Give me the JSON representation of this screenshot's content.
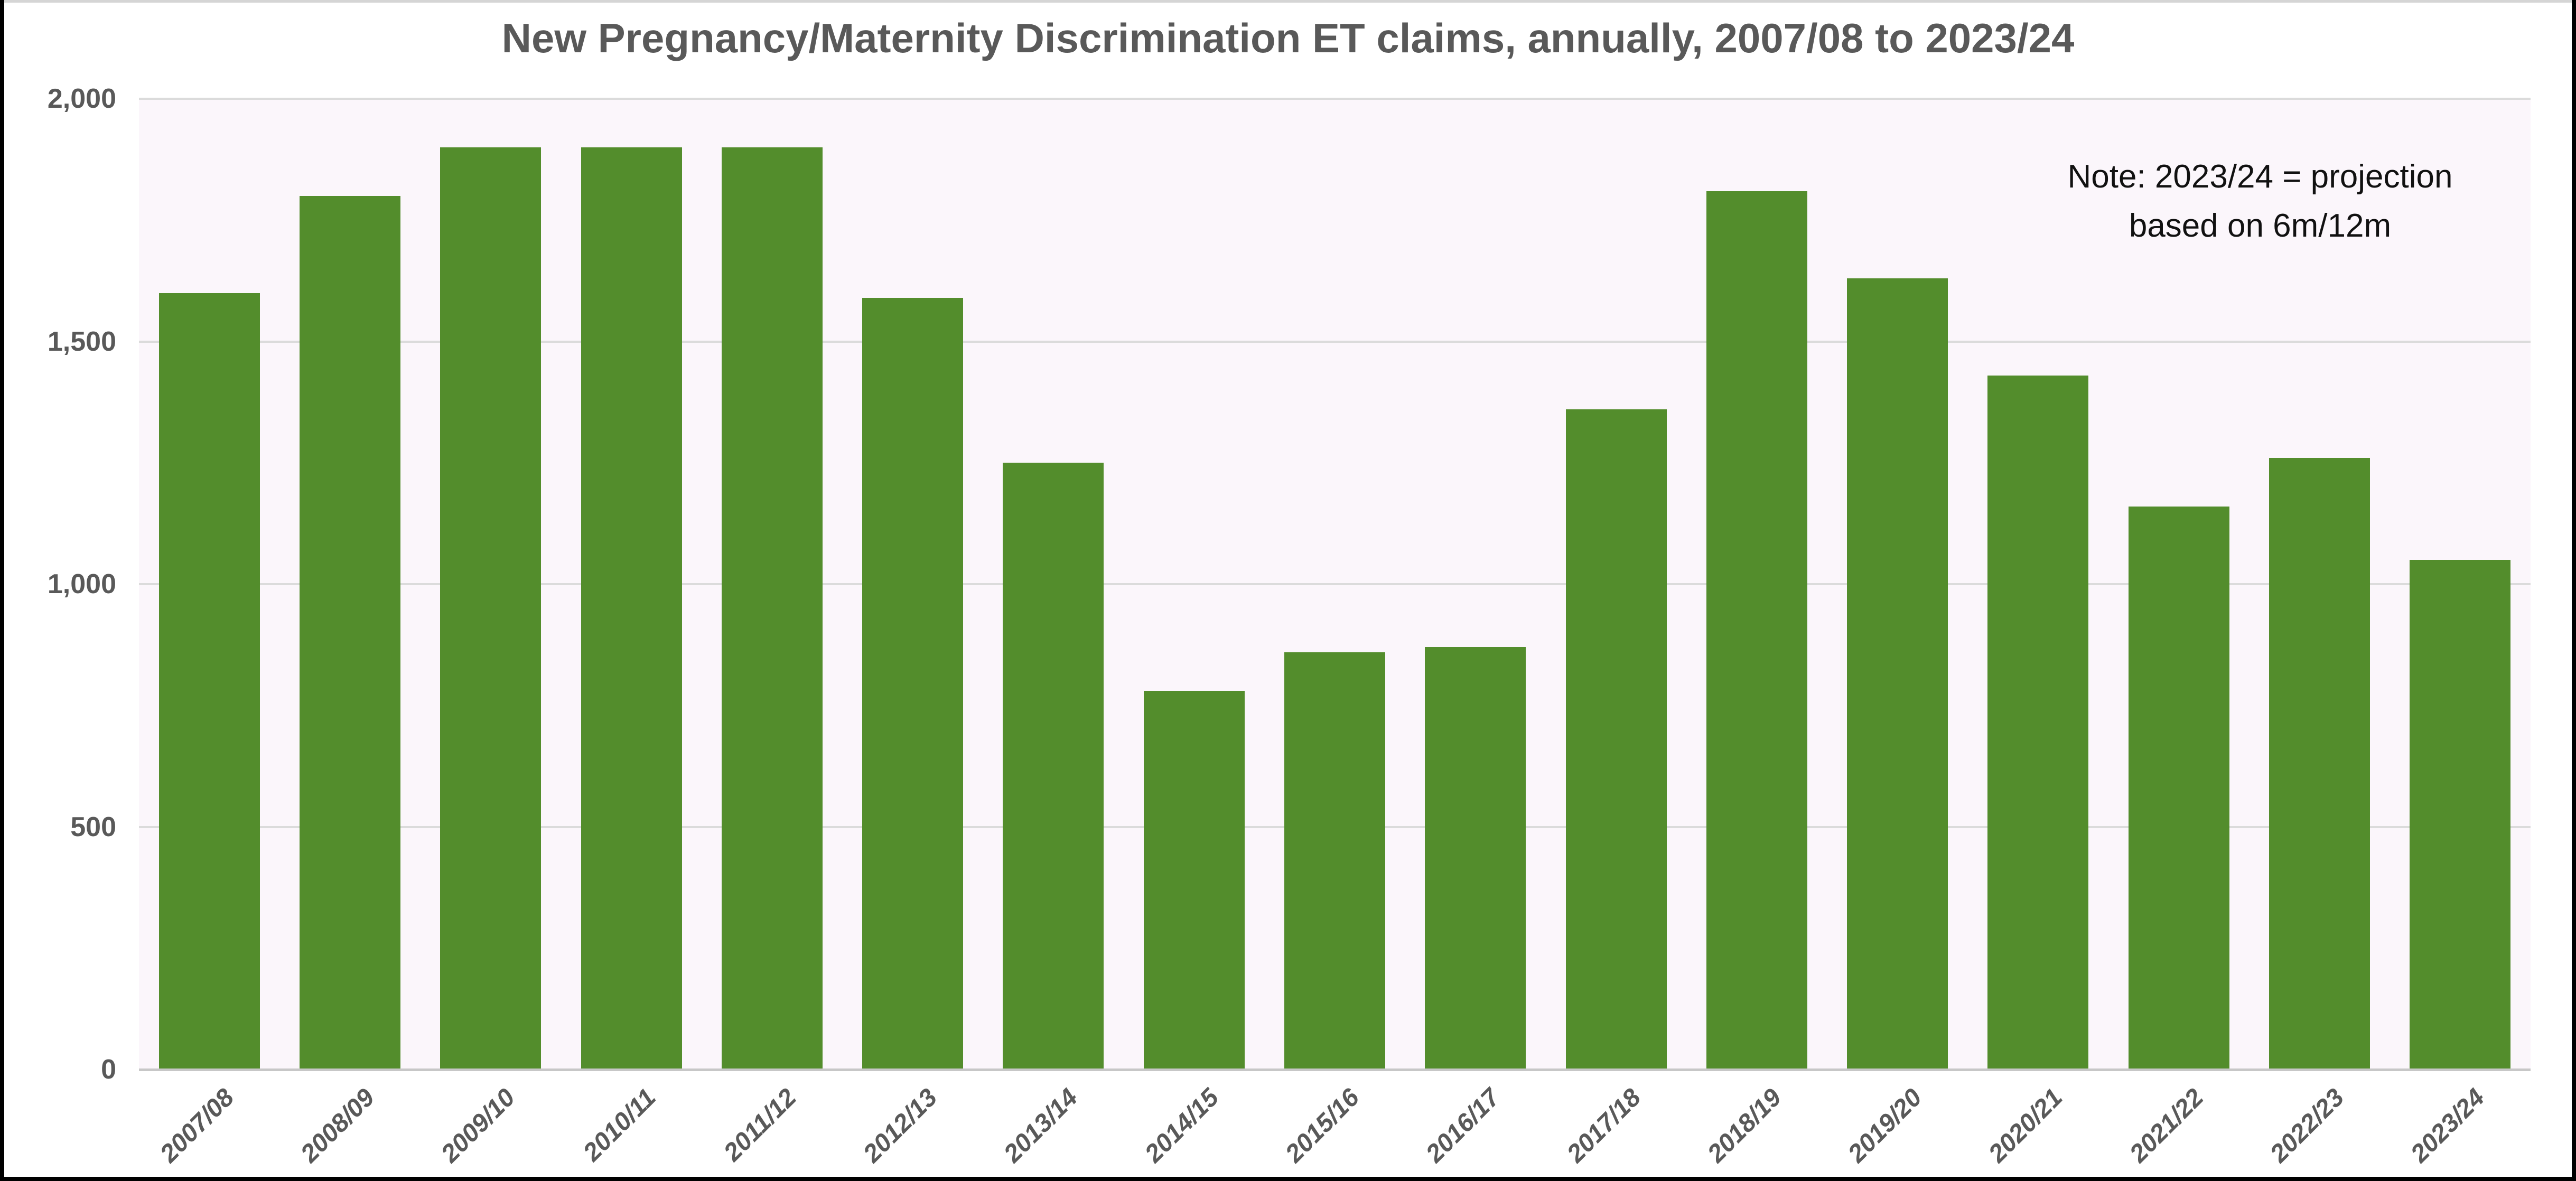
{
  "title": "New Pregnancy/Maternity Discrimination ET claims, annually, 2007/08 to 2023/24",
  "note": {
    "line1": "Note: 2023/24 = projection",
    "line2": "based on 6m/12m"
  },
  "chart_data": {
    "type": "bar",
    "title": "New Pregnancy/Maternity Discrimination ET claims, annually, 2007/08 to 2023/24",
    "categories": [
      "2007/08",
      "2008/09",
      "2009/10",
      "2010/11",
      "2011/12",
      "2012/13",
      "2013/14",
      "2014/15",
      "2015/16",
      "2016/17",
      "2017/18",
      "2018/19",
      "2019/20",
      "2020/21",
      "2021/22",
      "2022/23",
      "2023/24"
    ],
    "values": [
      1600,
      1800,
      1900,
      1900,
      1900,
      1590,
      1250,
      780,
      860,
      870,
      1360,
      1810,
      1630,
      1430,
      1160,
      1260,
      1050
    ],
    "xlabel": "",
    "ylabel": "",
    "ylim": [
      0,
      2000
    ],
    "yticks": [
      {
        "value": 0,
        "label": "0"
      },
      {
        "value": 500,
        "label": "500"
      },
      {
        "value": 1000,
        "label": "1,000"
      },
      {
        "value": 1500,
        "label": "1,500"
      },
      {
        "value": 2000,
        "label": "2,000"
      }
    ],
    "grid": true,
    "legend": "none",
    "annotation": "Note: 2023/24 = projection based on 6m/12m",
    "colors": {
      "bar": "#538d2c",
      "plot_background": "#fbf6fb",
      "gridline": "#dbdbdb",
      "axis_line": "#c7c7c7",
      "axis_text": "#595959",
      "title_text": "#595959",
      "note_text": "#111111",
      "page_background": "#ffffff",
      "frame": "#000000"
    }
  }
}
